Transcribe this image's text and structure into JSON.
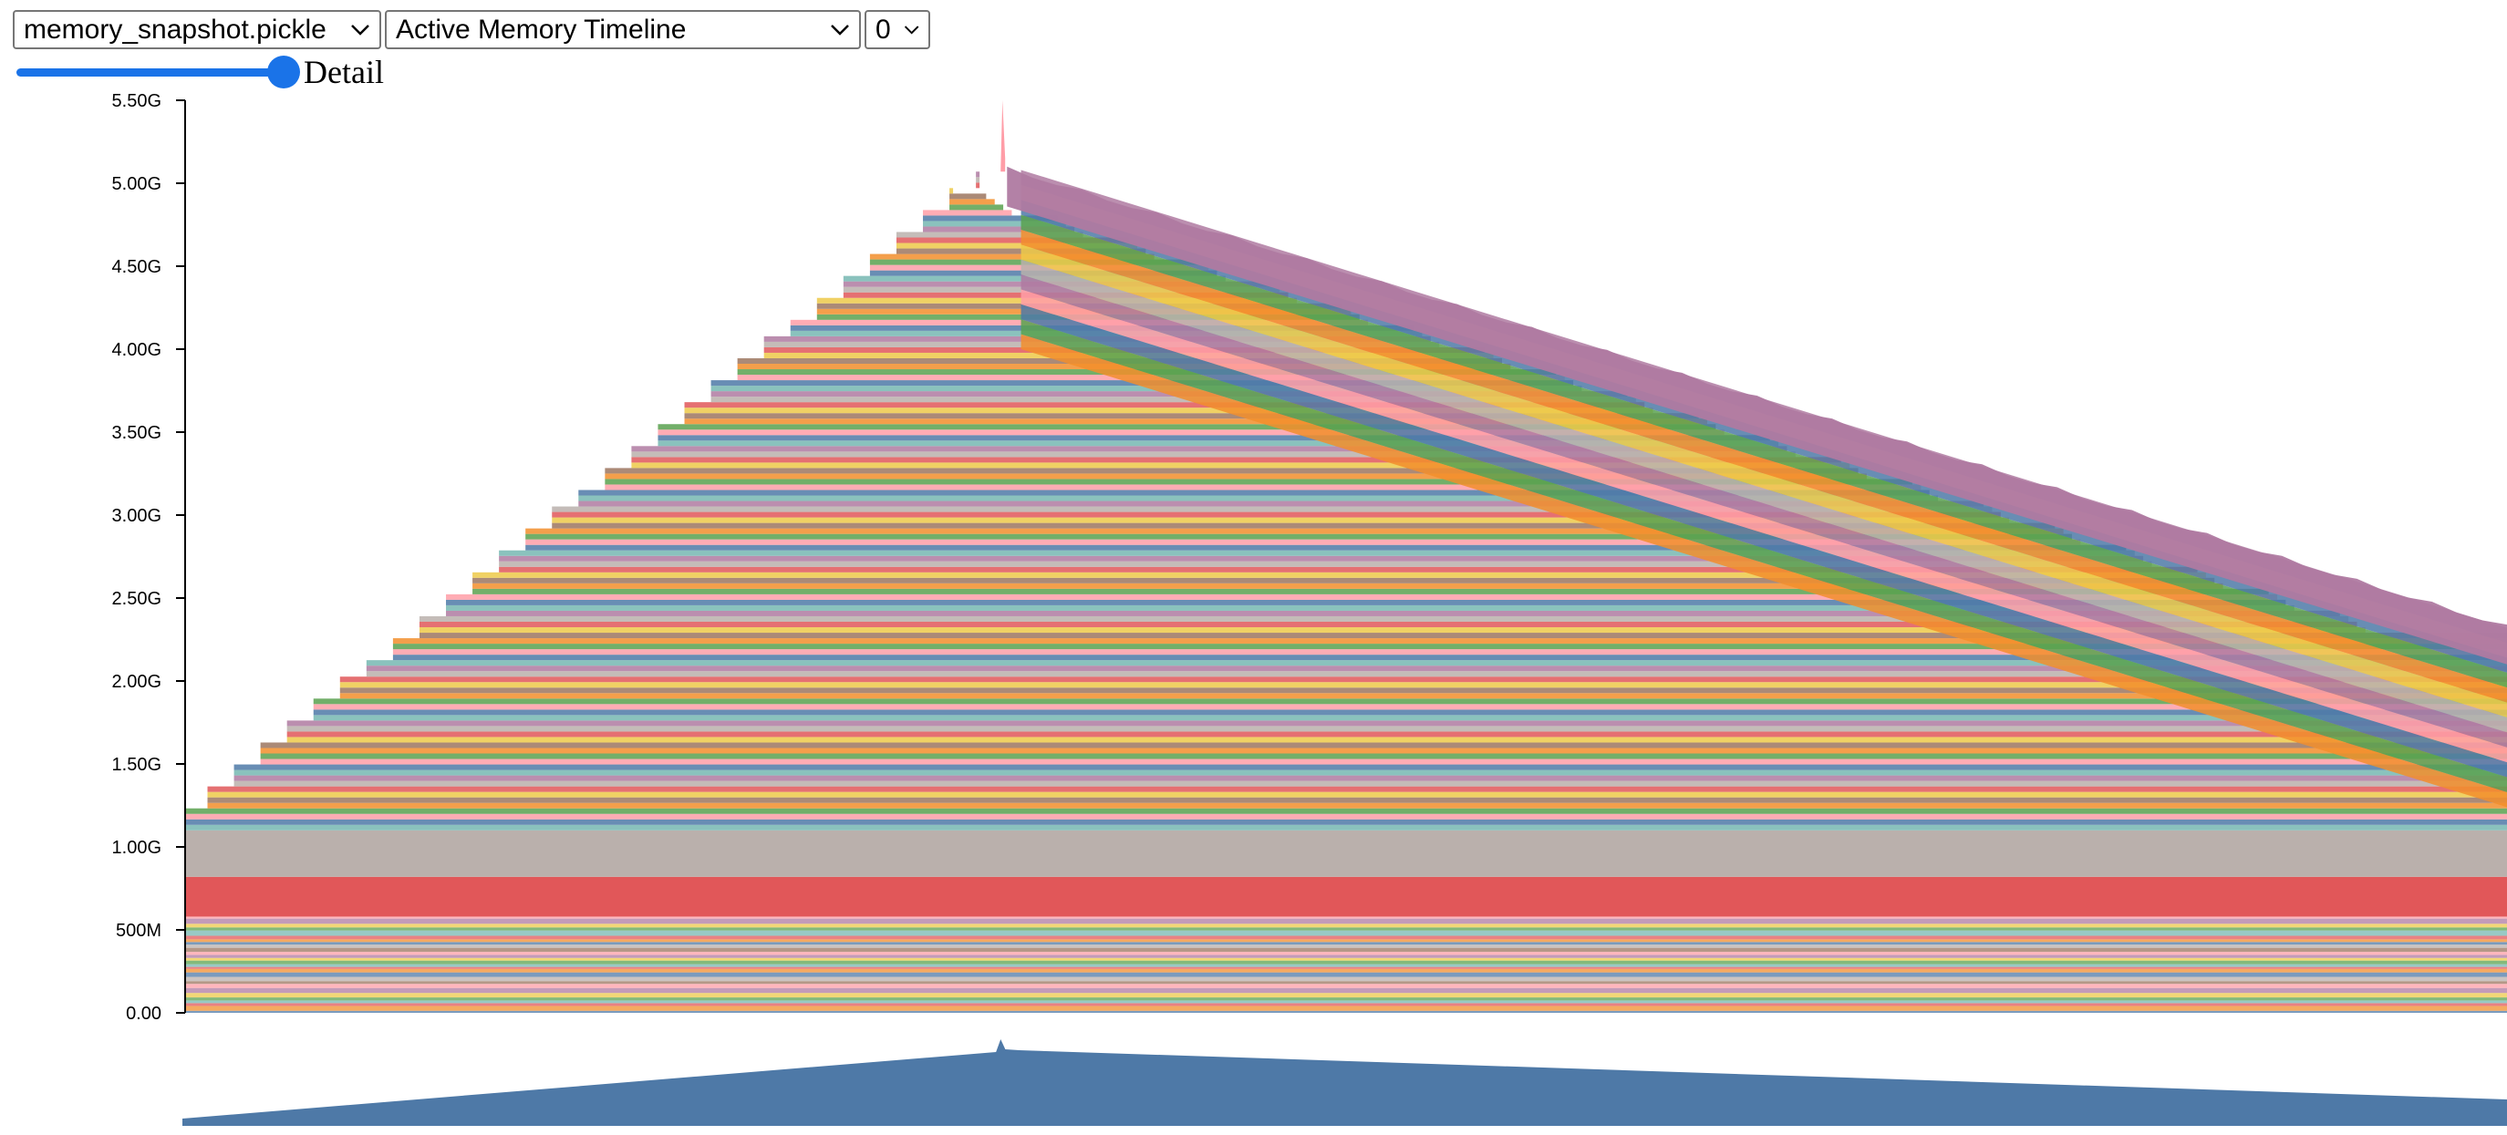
{
  "controls": {
    "file_select": {
      "value": "memory_snapshot.pickle"
    },
    "view_select": {
      "value": "Active Memory Timeline"
    },
    "device_select": {
      "value": "0"
    },
    "detail": {
      "label": "Detail",
      "value": 1.0
    }
  },
  "colors": {
    "accent": "#1a73e8",
    "axis": "#000000",
    "minimap_fill": "#4e79a7",
    "peak_block": "#af7aa1",
    "large_red_block": "#e15759",
    "large_gray_block": "#bab0ac",
    "palette": [
      "#4e79a7",
      "#f28e2c",
      "#e15759",
      "#76b7b2",
      "#59a14f",
      "#edc949",
      "#af7aa1",
      "#ff9da7",
      "#9c755f",
      "#bab0ac"
    ]
  },
  "chart_data": [
    {
      "type": "area",
      "title": "",
      "xlabel": "",
      "ylabel": "",
      "ylim": [
        0,
        5.5
      ],
      "y_unit": "GB",
      "yticks": [
        "0.00",
        "500M",
        "1.00G",
        "1.50G",
        "2.00G",
        "2.50G",
        "3.00G",
        "3.50G",
        "4.00G",
        "4.50G",
        "5.00G",
        "5.50G"
      ],
      "grid": false,
      "legend": "none",
      "stacked": true,
      "baseline_blocks": [
        {
          "name": "small persistent blocks",
          "start": 0.0,
          "end": 0.58
        },
        {
          "name": "large block (red)",
          "start": 0.58,
          "end": 0.82
        },
        {
          "name": "large block (gray)",
          "start": 0.82,
          "end": 1.1
        }
      ],
      "series_total": {
        "x": [
          0.0,
          0.35,
          0.352,
          0.355,
          0.36,
          1.0
        ],
        "y": [
          1.12,
          5.07,
          5.5,
          5.15,
          5.08,
          2.32
        ]
      },
      "ramp_up": {
        "x_start": 0.0,
        "x_peak": 0.352,
        "y_start": 1.12,
        "y_peak": 5.07,
        "steps": 31
      },
      "ramp_down": {
        "x_start": 0.36,
        "x_end": 1.0,
        "y_start": 5.08,
        "y_end": 2.32
      },
      "peak": {
        "x": 0.352,
        "y": 5.5
      }
    },
    {
      "type": "area",
      "title": "",
      "xlabel": "",
      "ylabel": "",
      "legend": "none",
      "series": [
        {
          "name": "",
          "x": [
            0.0,
            0.35,
            0.352,
            0.354,
            0.36,
            1.0
          ],
          "y": [
            0.08,
            0.81,
            0.95,
            0.84,
            0.83,
            0.29
          ]
        }
      ]
    }
  ]
}
